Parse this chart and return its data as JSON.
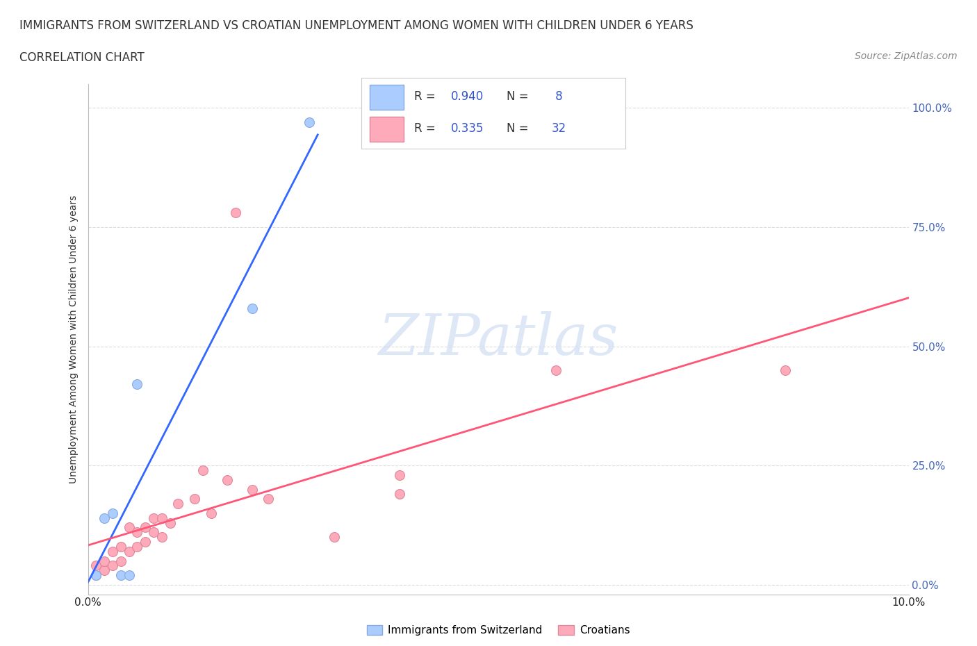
{
  "title": "IMMIGRANTS FROM SWITZERLAND VS CROATIAN UNEMPLOYMENT AMONG WOMEN WITH CHILDREN UNDER 6 YEARS",
  "subtitle": "CORRELATION CHART",
  "source": "Source: ZipAtlas.com",
  "ylabel": "Unemployment Among Women with Children Under 6 years",
  "xlim": [
    0.0,
    0.1
  ],
  "ylim": [
    -0.02,
    1.05
  ],
  "yticks": [
    0.0,
    0.25,
    0.5,
    0.75,
    1.0
  ],
  "ytick_labels": [
    "0.0%",
    "25.0%",
    "50.0%",
    "75.0%",
    "100.0%"
  ],
  "xticks": [
    0.0,
    0.02,
    0.04,
    0.06,
    0.08,
    0.1
  ],
  "xtick_labels": [
    "0.0%",
    "",
    "",
    "",
    "",
    "10.0%"
  ],
  "swiss_color": "#aaccff",
  "croatian_color": "#ffaabb",
  "swiss_edge": "#88aadd",
  "croatian_edge": "#dd8899",
  "trend_swiss_color": "#3366ff",
  "trend_croatian_color": "#ff5577",
  "swiss_x": [
    0.001,
    0.002,
    0.003,
    0.004,
    0.005,
    0.006,
    0.02,
    0.027
  ],
  "swiss_y": [
    0.02,
    0.14,
    0.15,
    0.02,
    0.02,
    0.42,
    0.58,
    0.97
  ],
  "croatian_x": [
    0.001,
    0.001,
    0.002,
    0.002,
    0.003,
    0.003,
    0.004,
    0.004,
    0.005,
    0.005,
    0.006,
    0.006,
    0.007,
    0.007,
    0.008,
    0.008,
    0.009,
    0.009,
    0.01,
    0.011,
    0.013,
    0.014,
    0.015,
    0.017,
    0.018,
    0.02,
    0.022,
    0.03,
    0.038,
    0.038,
    0.057,
    0.085
  ],
  "croatian_y": [
    0.02,
    0.04,
    0.03,
    0.05,
    0.04,
    0.07,
    0.05,
    0.08,
    0.07,
    0.12,
    0.08,
    0.11,
    0.09,
    0.12,
    0.11,
    0.14,
    0.1,
    0.14,
    0.13,
    0.17,
    0.18,
    0.24,
    0.15,
    0.22,
    0.78,
    0.2,
    0.18,
    0.1,
    0.19,
    0.23,
    0.45,
    0.45
  ],
  "watermark_text": "ZIPatlas",
  "background_color": "#ffffff",
  "grid_color": "#dddddd",
  "marker_size": 100,
  "title_fontsize": 12,
  "subtitle_fontsize": 12,
  "source_fontsize": 10,
  "legend_r1": "R = 0.940   N =  8",
  "legend_r2": "R = 0.335   N = 32",
  "legend_label1": "Immigrants from Switzerland",
  "legend_label2": "Croatians"
}
